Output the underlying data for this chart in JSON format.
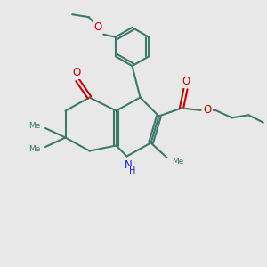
{
  "bg_color": "#e8e8e8",
  "bond_color": "#3d7a6a",
  "O_color": "#cc0000",
  "N_color": "#1a1aff",
  "line_width": 1.5,
  "figsize": [
    3.0,
    3.0
  ],
  "dpi": 100,
  "xlim": [
    0,
    10
  ],
  "ylim": [
    0,
    10
  ]
}
